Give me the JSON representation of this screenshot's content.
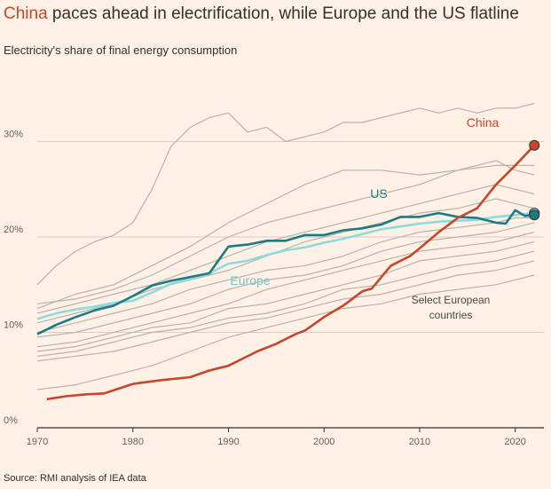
{
  "title": {
    "highlight": "China",
    "rest": " paces ahead in electrification, while Europe and the US flatline"
  },
  "subtitle": "Electricity's share of final energy consumption",
  "source": "Source: RMI analysis of IEA data",
  "colors": {
    "china": "#c8462a",
    "us": "#1c7a85",
    "europe": "#8fdbdb",
    "countries": "#b9b3ac",
    "grid": "#d9cfc5",
    "background": "#fff1e5"
  },
  "chart_data": {
    "type": "line",
    "xlabel": "",
    "ylabel": "",
    "xlim": [
      1970,
      2023
    ],
    "ylim": [
      0,
      33
    ],
    "x_ticks": [
      1970,
      1980,
      1990,
      2000,
      2010,
      2020
    ],
    "y_ticks": [
      {
        "value": 0,
        "label": "0%"
      },
      {
        "value": 10,
        "label": "10%"
      },
      {
        "value": 20,
        "label": "20%"
      },
      {
        "value": 30,
        "label": "30%"
      }
    ],
    "grid": true,
    "annotations": {
      "countries_label": [
        "Select European",
        "countries"
      ]
    },
    "series": [
      {
        "name": "China",
        "role": "highlight",
        "end_marker": true,
        "x": [
          1971,
          1973,
          1975,
          1977,
          1980,
          1983,
          1986,
          1988,
          1990,
          1993,
          1995,
          1997,
          1998,
          2000,
          2002,
          2004,
          2005,
          2007,
          2009,
          2010,
          2012,
          2014,
          2016,
          2018,
          2020,
          2022
        ],
        "y": [
          3.0,
          3.3,
          3.5,
          3.6,
          4.6,
          5.0,
          5.3,
          6.0,
          6.5,
          8.0,
          8.8,
          9.8,
          10.2,
          11.6,
          12.8,
          14.3,
          14.6,
          17.0,
          18.0,
          18.8,
          20.5,
          22.0,
          23.0,
          25.5,
          27.5,
          29.6
        ]
      },
      {
        "name": "US",
        "role": "highlight",
        "end_marker": true,
        "x": [
          1970,
          1972,
          1974,
          1976,
          1978,
          1980,
          1982,
          1984,
          1986,
          1988,
          1990,
          1992,
          1994,
          1996,
          1998,
          2000,
          2002,
          2004,
          2006,
          2008,
          2010,
          2012,
          2014,
          2016,
          2018,
          2019,
          2020,
          2021,
          2022
        ],
        "y": [
          9.8,
          10.8,
          11.6,
          12.3,
          12.8,
          13.8,
          14.9,
          15.4,
          15.8,
          16.2,
          19.0,
          19.2,
          19.6,
          19.6,
          20.2,
          20.2,
          20.7,
          20.9,
          21.3,
          22.1,
          22.1,
          22.5,
          22.1,
          22.0,
          21.5,
          21.4,
          22.8,
          22.2,
          22.3
        ]
      },
      {
        "name": "Europe",
        "role": "highlight",
        "end_marker": true,
        "x": [
          1970,
          1972,
          1974,
          1976,
          1978,
          1980,
          1982,
          1984,
          1986,
          1988,
          1990,
          1992,
          1994,
          1996,
          1998,
          2000,
          2002,
          2004,
          2006,
          2008,
          2010,
          2012,
          2014,
          2016,
          2018,
          2020,
          2022
        ],
        "y": [
          11.4,
          12.0,
          12.4,
          12.7,
          13.1,
          13.3,
          14.2,
          15.1,
          15.6,
          16.2,
          17.2,
          17.5,
          18.1,
          18.6,
          18.9,
          19.4,
          19.8,
          20.3,
          20.8,
          21.1,
          21.4,
          21.6,
          21.7,
          21.8,
          22.1,
          22.3,
          22.5
        ]
      },
      {
        "name": "",
        "role": "context",
        "x": [
          1970,
          1972,
          1974,
          1976,
          1978,
          1980,
          1982,
          1984,
          1986,
          1988,
          1990,
          1992,
          1994,
          1996,
          1998,
          2000,
          2002,
          2004,
          2006,
          2008,
          2010,
          2012,
          2014,
          2016,
          2018,
          2020,
          2022
        ],
        "y": [
          15.0,
          17.0,
          18.5,
          19.5,
          20.2,
          21.5,
          25.0,
          29.5,
          31.5,
          32.5,
          33.0,
          31.0,
          31.5,
          30.0,
          30.5,
          31.0,
          32.0,
          32.0,
          32.5,
          33.0,
          33.5,
          33.0,
          33.5,
          33.0,
          33.5,
          33.5,
          34.0
        ]
      },
      {
        "name": "",
        "role": "context",
        "x": [
          1970,
          1974,
          1978,
          1982,
          1986,
          1990,
          1994,
          1998,
          2002,
          2006,
          2010,
          2014,
          2018,
          2020,
          2022
        ],
        "y": [
          12.5,
          14.0,
          15.0,
          17.0,
          19.0,
          21.5,
          23.5,
          25.5,
          27.0,
          27.0,
          26.5,
          27.0,
          27.5,
          27.5,
          27.5
        ]
      },
      {
        "name": "",
        "role": "context",
        "x": [
          1970,
          1974,
          1978,
          1982,
          1986,
          1990,
          1994,
          1998,
          2002,
          2006,
          2010,
          2014,
          2018,
          2020,
          2022
        ],
        "y": [
          13.0,
          13.5,
          14.5,
          16.0,
          18.0,
          20.0,
          21.5,
          22.5,
          23.5,
          24.5,
          25.5,
          27.0,
          28.0,
          27.0,
          26.5
        ]
      },
      {
        "name": "",
        "role": "context",
        "x": [
          1970,
          1974,
          1978,
          1982,
          1986,
          1990,
          1994,
          1998,
          2002,
          2006,
          2010,
          2014,
          2018,
          2020,
          2022
        ],
        "y": [
          12.0,
          13.0,
          14.0,
          15.0,
          16.5,
          18.0,
          19.5,
          20.5,
          21.5,
          22.5,
          23.5,
          24.5,
          25.5,
          25.0,
          24.5
        ]
      },
      {
        "name": "",
        "role": "context",
        "x": [
          1970,
          1974,
          1978,
          1982,
          1986,
          1990,
          1994,
          1998,
          2002,
          2006,
          2010,
          2014,
          2018,
          2020,
          2022
        ],
        "y": [
          11.0,
          12.0,
          13.0,
          14.5,
          15.5,
          16.5,
          18.0,
          19.5,
          20.5,
          21.5,
          22.5,
          23.0,
          24.0,
          23.5,
          23.0
        ]
      },
      {
        "name": "",
        "role": "context",
        "x": [
          1970,
          1974,
          1978,
          1982,
          1986,
          1990,
          1994,
          1998,
          2002,
          2006,
          2010,
          2014,
          2018,
          2020,
          2022
        ],
        "y": [
          10.0,
          11.0,
          12.0,
          13.0,
          14.5,
          15.5,
          16.5,
          17.0,
          18.0,
          19.5,
          20.5,
          21.0,
          21.5,
          22.0,
          22.0
        ]
      },
      {
        "name": "",
        "role": "context",
        "x": [
          1970,
          1974,
          1978,
          1982,
          1986,
          1990,
          1994,
          1998,
          2002,
          2006,
          2010,
          2014,
          2018,
          2020,
          2022
        ],
        "y": [
          9.5,
          10.0,
          11.0,
          12.0,
          13.0,
          14.5,
          15.5,
          16.0,
          17.0,
          18.5,
          19.5,
          20.0,
          20.5,
          21.0,
          21.5
        ]
      },
      {
        "name": "",
        "role": "context",
        "x": [
          1970,
          1974,
          1978,
          1982,
          1986,
          1990,
          1994,
          1998,
          2002,
          2006,
          2010,
          2014,
          2018,
          2020,
          2022
        ],
        "y": [
          8.5,
          9.0,
          10.0,
          11.0,
          12.0,
          13.0,
          14.5,
          15.5,
          16.5,
          17.5,
          18.5,
          19.0,
          19.5,
          20.0,
          20.5
        ]
      },
      {
        "name": "",
        "role": "context",
        "x": [
          1970,
          1974,
          1978,
          1982,
          1986,
          1990,
          1994,
          1998,
          2002,
          2006,
          2010,
          2014,
          2018,
          2020,
          2022
        ],
        "y": [
          8.0,
          8.5,
          9.5,
          10.5,
          11.0,
          12.5,
          13.0,
          14.0,
          15.0,
          16.0,
          17.5,
          18.0,
          18.5,
          19.0,
          19.5
        ]
      },
      {
        "name": "",
        "role": "context",
        "x": [
          1970,
          1974,
          1978,
          1982,
          1986,
          1990,
          1994,
          1998,
          2002,
          2006,
          2010,
          2014,
          2018,
          2020,
          2022
        ],
        "y": [
          7.5,
          8.0,
          9.0,
          10.0,
          10.5,
          11.5,
          12.0,
          13.0,
          14.5,
          15.0,
          16.0,
          17.0,
          17.5,
          18.0,
          18.5
        ]
      },
      {
        "name": "",
        "role": "context",
        "x": [
          1970,
          1974,
          1978,
          1982,
          1986,
          1990,
          1994,
          1998,
          2002,
          2006,
          2010,
          2014,
          2018,
          2020,
          2022
        ],
        "y": [
          7.0,
          7.5,
          8.0,
          9.0,
          10.0,
          11.0,
          11.5,
          12.5,
          13.5,
          14.0,
          15.0,
          16.0,
          16.5,
          17.0,
          17.5
        ]
      },
      {
        "name": "",
        "role": "context",
        "x": [
          1970,
          1974,
          1978,
          1982,
          1986,
          1990,
          1994,
          1998,
          2002,
          2006,
          2010,
          2014,
          2018,
          2020,
          2022
        ],
        "y": [
          4.0,
          4.5,
          5.5,
          6.5,
          8.0,
          9.5,
          10.5,
          11.5,
          12.5,
          13.0,
          14.0,
          14.5,
          15.0,
          15.5,
          16.0
        ]
      }
    ]
  }
}
